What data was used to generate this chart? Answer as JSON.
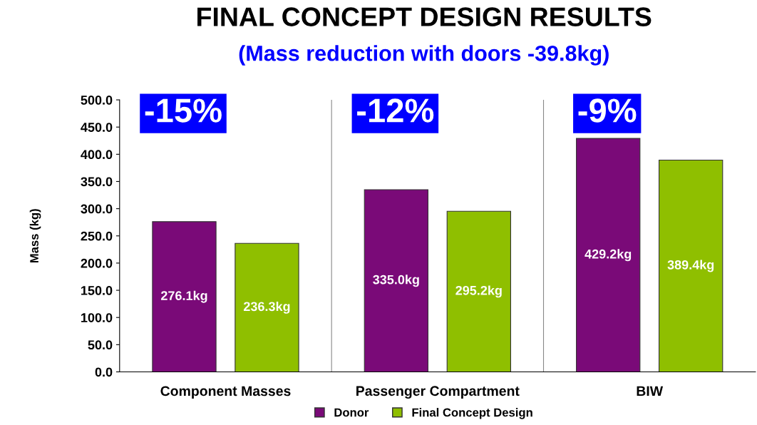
{
  "chart_data": {
    "type": "bar",
    "title": "FINAL CONCEPT DESIGN RESULTS",
    "subtitle": "(Mass reduction with doors -39.8kg)",
    "ylabel": "Mass (kg)",
    "categories": [
      "Component Masses",
      "Passenger Compartment",
      "BIW"
    ],
    "series": [
      {
        "name": "Donor",
        "color": "#7a0a78",
        "values": [
          276.1,
          335.0,
          429.2
        ],
        "value_labels": [
          "276.1kg",
          "335.0kg",
          "429.2kg"
        ]
      },
      {
        "name": "Final Concept Design",
        "color": "#8fbf00",
        "values": [
          236.3,
          295.2,
          389.4
        ],
        "value_labels": [
          "236.3kg",
          "295.2kg",
          "389.4kg"
        ]
      }
    ],
    "annotations": [
      "-15%",
      "-12%",
      "-9%"
    ],
    "ylim": [
      0,
      500
    ],
    "yticks": [
      {
        "value": 0,
        "label": "0.0"
      },
      {
        "value": 50,
        "label": "50.0"
      },
      {
        "value": 100,
        "label": "100.0"
      },
      {
        "value": 150,
        "label": "150.0"
      },
      {
        "value": 200,
        "label": "200.0"
      },
      {
        "value": 250,
        "label": "250.0"
      },
      {
        "value": 300,
        "label": "300.0"
      },
      {
        "value": 350,
        "label": "350.0"
      },
      {
        "value": 400,
        "label": "400.0"
      },
      {
        "value": 450,
        "label": "450.0"
      },
      {
        "value": 500,
        "label": "500.0"
      }
    ],
    "grid": false,
    "legend": "bottom"
  }
}
